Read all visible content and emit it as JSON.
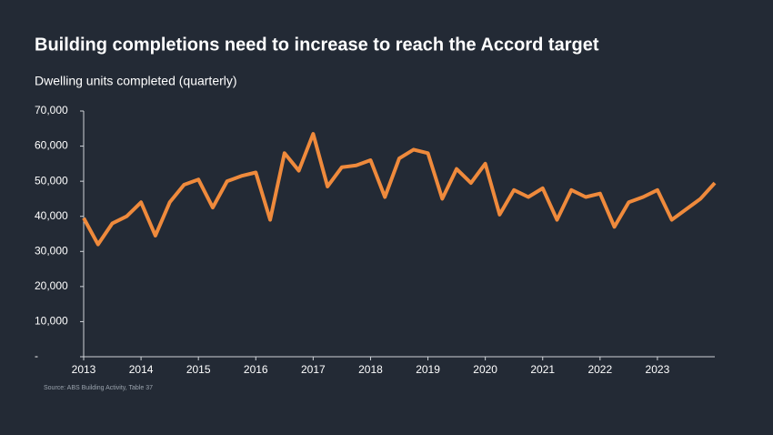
{
  "chart_data": {
    "type": "line",
    "title": "Building completions need to increase to reach the Accord target",
    "subtitle": "Dwelling units completed (quarterly)",
    "source": "Source: ABS Building Activity, Table 37",
    "categories": [
      "2013",
      null,
      null,
      null,
      "2014",
      null,
      null,
      null,
      "2015",
      null,
      null,
      null,
      "2016",
      null,
      null,
      null,
      "2017",
      null,
      null,
      null,
      "2018",
      null,
      null,
      null,
      "2019",
      null,
      null,
      null,
      "2020",
      null,
      null,
      null,
      "2021",
      null,
      null,
      null,
      "2022",
      null,
      null,
      null,
      "2023",
      null,
      null,
      null,
      null
    ],
    "values": [
      39500,
      32000,
      38000,
      40000,
      44000,
      34500,
      44000,
      49000,
      50500,
      42500,
      50000,
      51500,
      52500,
      39000,
      58000,
      53000,
      63500,
      48500,
      54000,
      54500,
      56000,
      45500,
      56500,
      59000,
      58000,
      45000,
      53500,
      49500,
      55000,
      40500,
      47500,
      45500,
      48000,
      39000,
      47500,
      45500,
      46500,
      37000,
      44000,
      45500,
      47500,
      39000,
      42000,
      45000,
      49500
    ],
    "color": "#ef8a3c",
    "ylim": [
      0,
      70000
    ],
    "yticks": [
      {
        "value": 0,
        "label": "-"
      },
      {
        "value": 10000,
        "label": "10,000"
      },
      {
        "value": 20000,
        "label": "20,000"
      },
      {
        "value": 30000,
        "label": "30,000"
      },
      {
        "value": 40000,
        "label": "40,000"
      },
      {
        "value": 50000,
        "label": "50,000"
      },
      {
        "value": 60000,
        "label": "60,000"
      },
      {
        "value": 70000,
        "label": "70,000"
      }
    ]
  }
}
